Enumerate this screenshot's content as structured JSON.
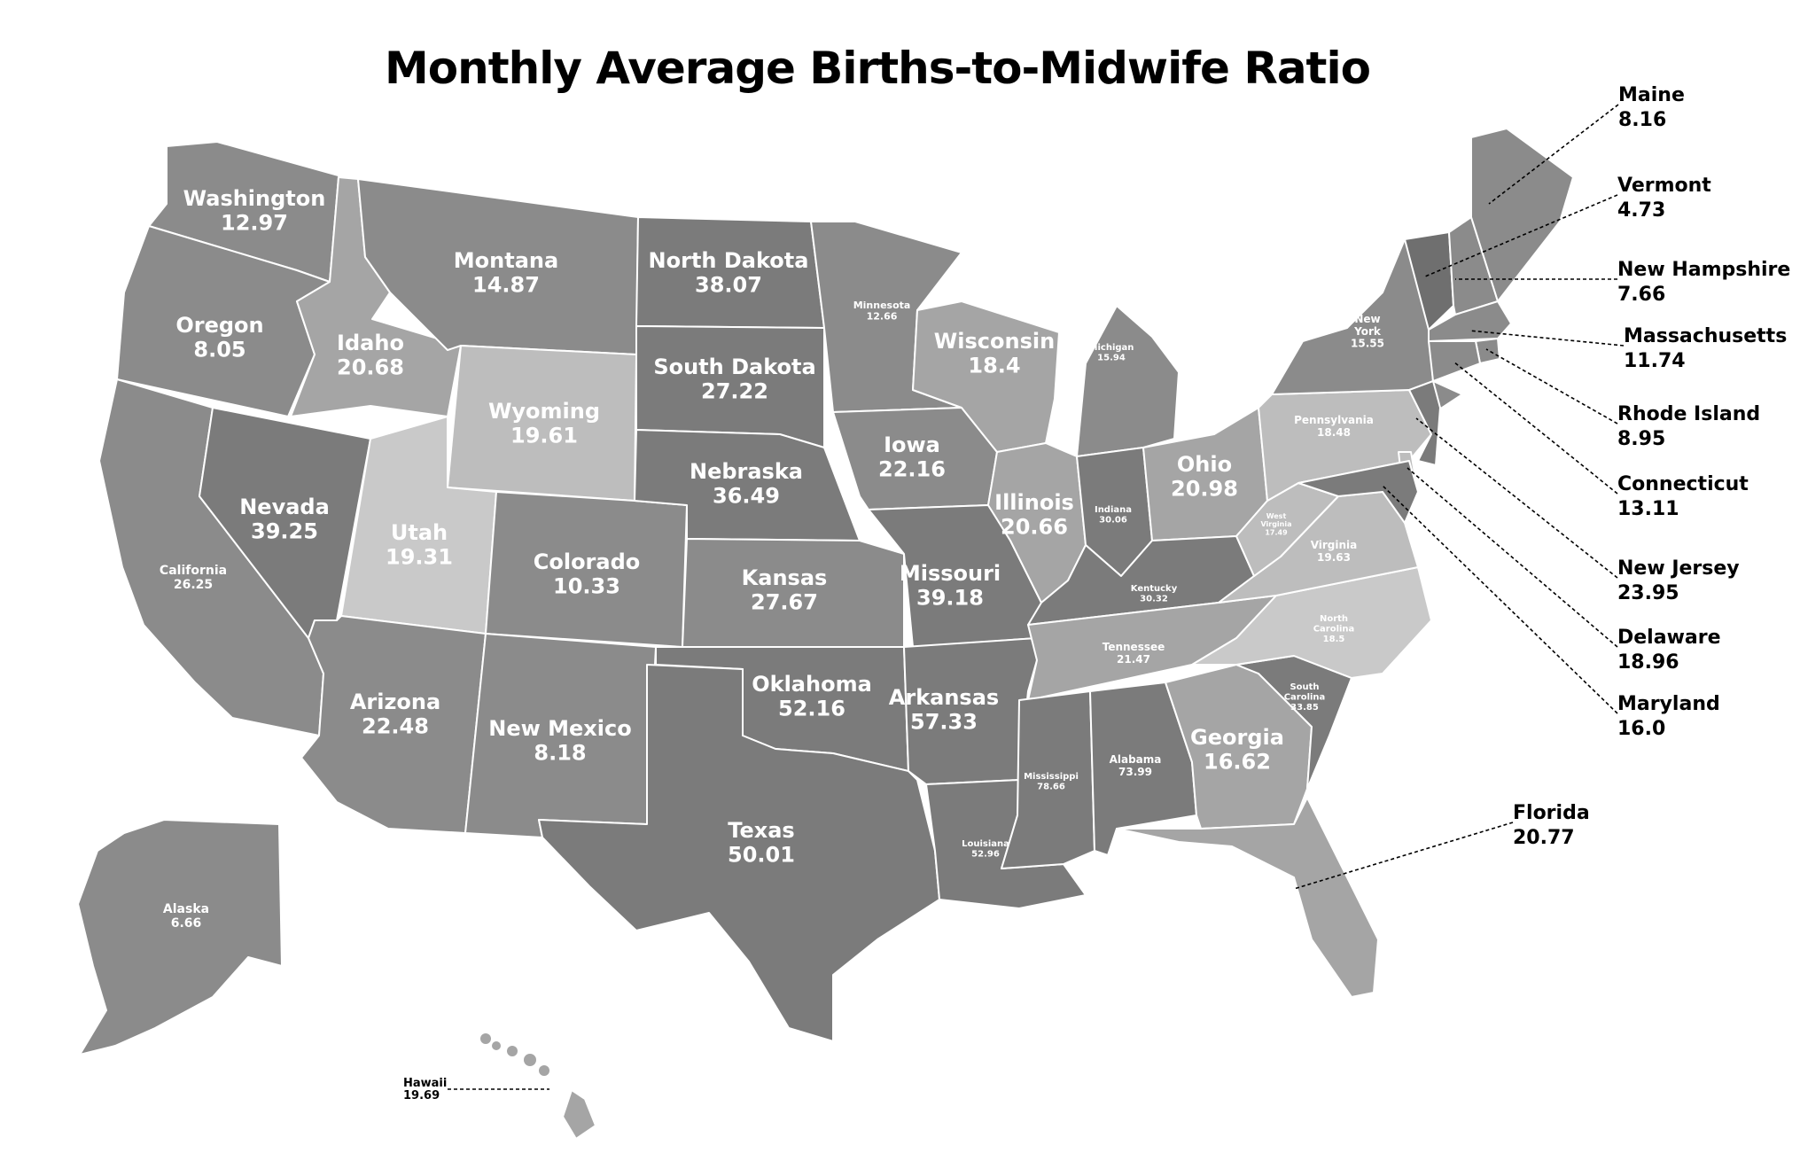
{
  "title": "Monthly Average Births-to-Midwife Ratio",
  "colors": {
    "very_dark": "#6f6f6f",
    "dark": "#7b7b7b",
    "medium": "#8b8b8b",
    "light": "#a5a5a5",
    "lighter": "#bdbdbd",
    "lightest": "#c9c9c9",
    "border": "#ffffff",
    "background": "#ffffff"
  },
  "states": [
    {
      "id": "WA",
      "name": "Washington",
      "value": "12.97",
      "shade": "medium"
    },
    {
      "id": "OR",
      "name": "Oregon",
      "value": "8.05",
      "shade": "medium"
    },
    {
      "id": "CA",
      "name": "California",
      "value": "26.25",
      "shade": "medium"
    },
    {
      "id": "NV",
      "name": "Nevada",
      "value": "39.25",
      "shade": "dark"
    },
    {
      "id": "ID",
      "name": "Idaho",
      "value": "20.68",
      "shade": "light"
    },
    {
      "id": "MT",
      "name": "Montana",
      "value": "14.87",
      "shade": "medium"
    },
    {
      "id": "WY",
      "name": "Wyoming",
      "value": "19.61",
      "shade": "lighter"
    },
    {
      "id": "UT",
      "name": "Utah",
      "value": "19.31",
      "shade": "lightest"
    },
    {
      "id": "AZ",
      "name": "Arizona",
      "value": "22.48",
      "shade": "medium"
    },
    {
      "id": "CO",
      "name": "Colorado",
      "value": "10.33",
      "shade": "medium"
    },
    {
      "id": "NM",
      "name": "New Mexico",
      "value": "8.18",
      "shade": "medium"
    },
    {
      "id": "ND",
      "name": "North Dakota",
      "value": "38.07",
      "shade": "dark"
    },
    {
      "id": "SD",
      "name": "South Dakota",
      "value": "27.22",
      "shade": "dark"
    },
    {
      "id": "NE",
      "name": "Nebraska",
      "value": "36.49",
      "shade": "dark"
    },
    {
      "id": "KS",
      "name": "Kansas",
      "value": "27.67",
      "shade": "medium"
    },
    {
      "id": "OK",
      "name": "Oklahoma",
      "value": "52.16",
      "shade": "dark"
    },
    {
      "id": "TX",
      "name": "Texas",
      "value": "50.01",
      "shade": "dark"
    },
    {
      "id": "MN",
      "name": "Minnesota",
      "value": "12.66",
      "shade": "medium"
    },
    {
      "id": "IA",
      "name": "Iowa",
      "value": "22.16",
      "shade": "medium"
    },
    {
      "id": "MO",
      "name": "Missouri",
      "value": "39.18",
      "shade": "dark"
    },
    {
      "id": "AR",
      "name": "Arkansas",
      "value": "57.33",
      "shade": "dark"
    },
    {
      "id": "LA",
      "name": "Louisiana",
      "value": "52.96",
      "shade": "dark"
    },
    {
      "id": "WI",
      "name": "Wisconsin",
      "value": "18.4",
      "shade": "light"
    },
    {
      "id": "IL",
      "name": "Illinois",
      "value": "20.66",
      "shade": "light"
    },
    {
      "id": "MI",
      "name": "Michigan",
      "value": "15.94",
      "shade": "medium"
    },
    {
      "id": "IN",
      "name": "Indiana",
      "value": "30.06",
      "shade": "dark"
    },
    {
      "id": "OH",
      "name": "Ohio",
      "value": "20.98",
      "shade": "light"
    },
    {
      "id": "KY",
      "name": "Kentucky",
      "value": "30.32",
      "shade": "dark"
    },
    {
      "id": "TN",
      "name": "Tennessee",
      "value": "21.47",
      "shade": "light"
    },
    {
      "id": "MS",
      "name": "Mississippi",
      "value": "78.66",
      "shade": "dark"
    },
    {
      "id": "AL",
      "name": "Alabama",
      "value": "73.99",
      "shade": "dark"
    },
    {
      "id": "GA",
      "name": "Georgia",
      "value": "16.62",
      "shade": "light"
    },
    {
      "id": "FL",
      "name": "Florida",
      "value": "20.77",
      "shade": "light"
    },
    {
      "id": "SC",
      "name": "South Carolina",
      "value": "33.85",
      "shade": "dark"
    },
    {
      "id": "NC",
      "name": "North Carolina",
      "value": "18.5",
      "shade": "lightest"
    },
    {
      "id": "VA",
      "name": "Virginia",
      "value": "19.63",
      "shade": "lighter"
    },
    {
      "id": "WV",
      "name": "West Virginia",
      "value": "17.49",
      "shade": "lighter"
    },
    {
      "id": "PA",
      "name": "Pennsylvania",
      "value": "18.48",
      "shade": "lighter"
    },
    {
      "id": "NY",
      "name": "New York",
      "value": "15.55",
      "shade": "medium"
    },
    {
      "id": "VT",
      "name": "Vermont",
      "value": "4.73",
      "shade": "very_dark"
    },
    {
      "id": "NH",
      "name": "New Hampshire",
      "value": "7.66",
      "shade": "medium"
    },
    {
      "id": "ME",
      "name": "Maine",
      "value": "8.16",
      "shade": "medium"
    },
    {
      "id": "MA",
      "name": "Massachusetts",
      "value": "11.74",
      "shade": "medium"
    },
    {
      "id": "RI",
      "name": "Rhode Island",
      "value": "8.95",
      "shade": "medium"
    },
    {
      "id": "CT",
      "name": "Connecticut",
      "value": "13.11",
      "shade": "medium"
    },
    {
      "id": "NJ",
      "name": "New Jersey",
      "value": "23.95",
      "shade": "dark"
    },
    {
      "id": "DE",
      "name": "Delaware",
      "value": "18.96",
      "shade": "lighter"
    },
    {
      "id": "MD",
      "name": "Maryland",
      "value": "16.0",
      "shade": "dark"
    },
    {
      "id": "AK",
      "name": "Alaska",
      "value": "6.66",
      "shade": "medium"
    },
    {
      "id": "HI",
      "name": "Hawaii",
      "value": "19.69",
      "shade": "light"
    }
  ]
}
